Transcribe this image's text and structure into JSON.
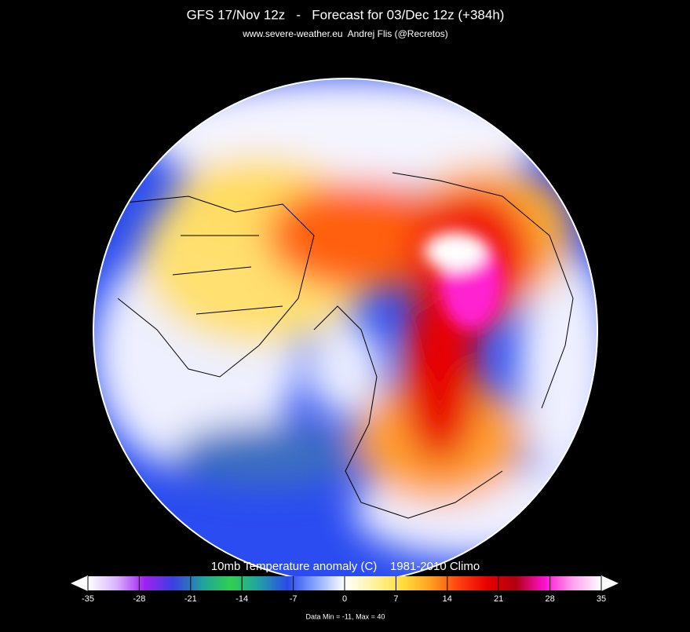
{
  "header": {
    "title": "GFS 17/Nov 12z   -   Forecast for 03/Dec 12z (+384h)",
    "subtitle": "www.severe-weather.eu  Andrej Flis (@Recretos)"
  },
  "colorbar": {
    "title": "10mb Temperature anomaly (C)    1981-2010 Climo",
    "lim": [
      -35,
      35
    ],
    "ticks": [
      -35,
      -28,
      -21,
      -14,
      -7,
      0,
      7,
      14,
      21,
      28,
      35
    ],
    "colors": [
      "#ffffff",
      "#d9b3ff",
      "#a020f0",
      "#3a40e0",
      "#20a0a0",
      "#30d050",
      "#20a0a8",
      "#2a4ae8",
      "#8aa8ff",
      "#ffffff",
      "#fff2a0",
      "#ffe040",
      "#ffa020",
      "#ff4010",
      "#e80000",
      "#b00010",
      "#ff10d0",
      "#ffa0f0",
      "#ffffff"
    ]
  },
  "footer": {
    "text": "Data Min = -11, Max = 40"
  }
}
